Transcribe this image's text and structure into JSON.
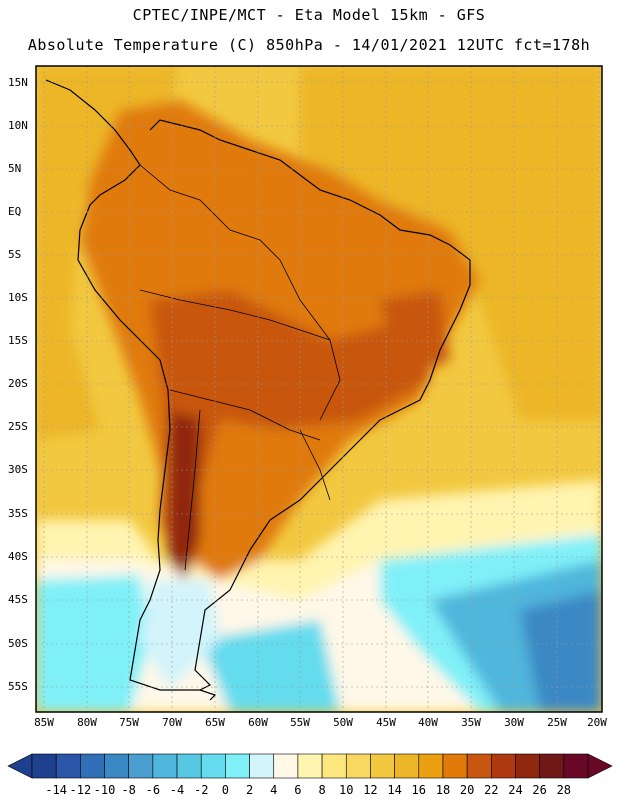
{
  "title": {
    "line1": "CPTEC/INPE/MCT -  Eta Model 15km - GFS",
    "line2": "Absolute Temperature (C) 850hPa - 14/01/2021 12UTC fct=178h"
  },
  "map": {
    "region": "South America",
    "lat_ticks": [
      "15N",
      "10N",
      "5N",
      "EQ",
      "5S",
      "10S",
      "15S",
      "20S",
      "25S",
      "30S",
      "35S",
      "40S",
      "45S",
      "50S",
      "55S"
    ],
    "lon_ticks": [
      "85W",
      "80W",
      "75W",
      "70W",
      "65W",
      "60W",
      "55W",
      "50W",
      "45W",
      "40W",
      "35W",
      "30W",
      "25W",
      "20W"
    ]
  },
  "colorbar": {
    "labels": [
      "-14",
      "-12",
      "-10",
      "-8",
      "-6",
      "-4",
      "-2",
      "0",
      "2",
      "4",
      "6",
      "8",
      "10",
      "12",
      "14",
      "16",
      "18",
      "20",
      "22",
      "24",
      "26",
      "28"
    ],
    "colors": [
      "#1f3f8f",
      "#2a55a8",
      "#3170b8",
      "#3a88c4",
      "#4a9fd0",
      "#50b6dc",
      "#56c8e4",
      "#64dcee",
      "#80f0f8",
      "#d2f4fa",
      "#fff8e8",
      "#fff4b0",
      "#fde880",
      "#f8d860",
      "#f2c840",
      "#ecb628",
      "#eaa010",
      "#e07a08",
      "#c85610",
      "#b03a10",
      "#902810",
      "#701818",
      "#6a0828"
    ]
  }
}
